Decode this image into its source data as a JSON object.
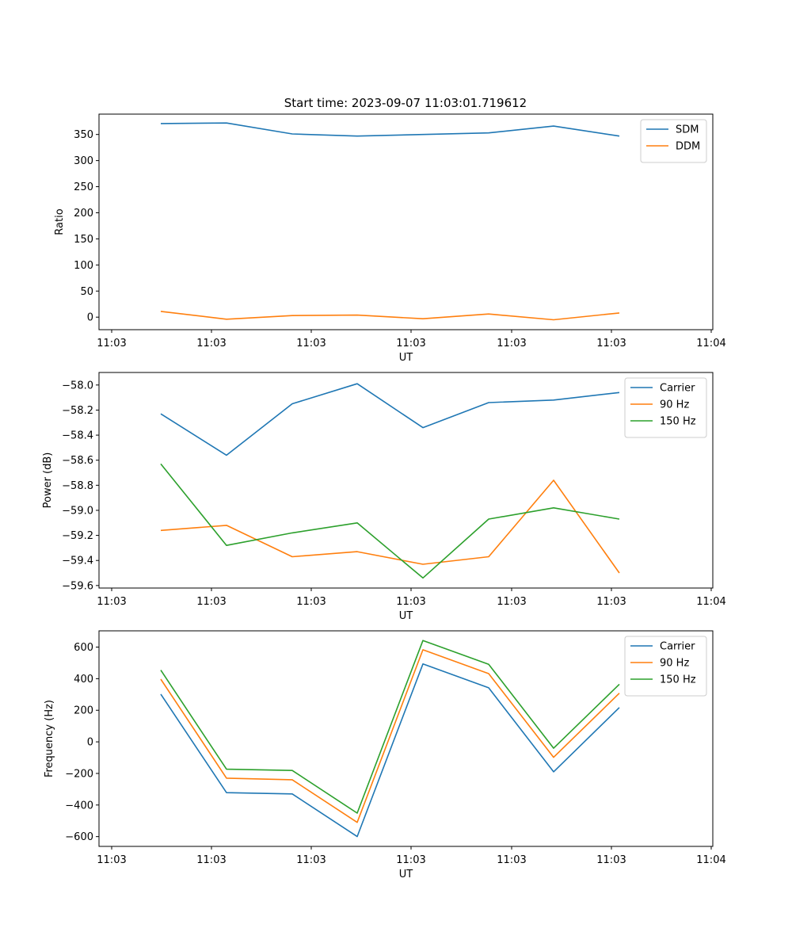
{
  "chart_data": [
    {
      "type": "line",
      "title": "Start time: 2023-09-07 11:03:01.719612",
      "xlabel": "UT",
      "ylabel": "Ratio",
      "ylim": [
        -24,
        389
      ],
      "yticks": [
        0,
        50,
        100,
        150,
        200,
        250,
        300,
        350
      ],
      "xticks": [
        "11:03",
        "11:03",
        "11:03",
        "11:03",
        "11:03",
        "11:03",
        "11:04"
      ],
      "legend_position": "top-right",
      "series": [
        {
          "name": "SDM",
          "color": "#1f77b4",
          "values": [
            371,
            372,
            351,
            347,
            350,
            353,
            366,
            347
          ]
        },
        {
          "name": "DDM",
          "color": "#ff7f0e",
          "values": [
            11,
            -4,
            3,
            4,
            -3,
            6,
            -5,
            8
          ]
        }
      ]
    },
    {
      "type": "line",
      "title": "",
      "xlabel": "UT",
      "ylabel": "Power (dB)",
      "ylim": [
        -59.62,
        -57.9
      ],
      "yticks": [
        -58.0,
        -58.2,
        -58.4,
        -58.6,
        -58.8,
        -59.0,
        -59.2,
        -59.4,
        -59.6
      ],
      "ytick_labels": [
        "−58.0",
        "−58.2",
        "−58.4",
        "−58.6",
        "−58.8",
        "−59.0",
        "−59.2",
        "−59.4",
        "−59.6"
      ],
      "xticks": [
        "11:03",
        "11:03",
        "11:03",
        "11:03",
        "11:03",
        "11:03",
        "11:04"
      ],
      "legend_position": "top-right",
      "series": [
        {
          "name": "Carrier",
          "color": "#1f77b4",
          "values": [
            -58.23,
            -58.56,
            -58.15,
            -57.99,
            -58.34,
            -58.14,
            -58.12,
            -58.06
          ]
        },
        {
          "name": "90 Hz",
          "color": "#ff7f0e",
          "values": [
            -59.16,
            -59.12,
            -59.37,
            -59.33,
            -59.43,
            -59.37,
            -58.76,
            -59.5
          ]
        },
        {
          "name": "150 Hz",
          "color": "#2ca02c",
          "values": [
            -58.63,
            -59.28,
            -59.18,
            -59.1,
            -59.54,
            -59.07,
            -58.98,
            -59.07
          ]
        }
      ]
    },
    {
      "type": "line",
      "title": "",
      "xlabel": "UT",
      "ylabel": "Frequency (Hz)",
      "ylim": [
        -662,
        703
      ],
      "yticks": [
        600,
        400,
        200,
        0,
        -200,
        -400,
        -600
      ],
      "ytick_labels": [
        "600",
        "400",
        "200",
        "0",
        "−200",
        "−400",
        "−600"
      ],
      "xticks": [
        "11:03",
        "11:03",
        "11:03",
        "11:03",
        "11:03",
        "11:03",
        "11:04"
      ],
      "legend_position": "top-right",
      "series": [
        {
          "name": "Carrier",
          "color": "#1f77b4",
          "values": [
            302,
            -322,
            -330,
            -600,
            493,
            342,
            -190,
            217
          ]
        },
        {
          "name": "90 Hz",
          "color": "#ff7f0e",
          "values": [
            397,
            -230,
            -240,
            -510,
            583,
            432,
            -98,
            308
          ]
        },
        {
          "name": "150 Hz",
          "color": "#2ca02c",
          "values": [
            454,
            -173,
            -181,
            -451,
            642,
            491,
            -40,
            365
          ]
        }
      ]
    }
  ]
}
